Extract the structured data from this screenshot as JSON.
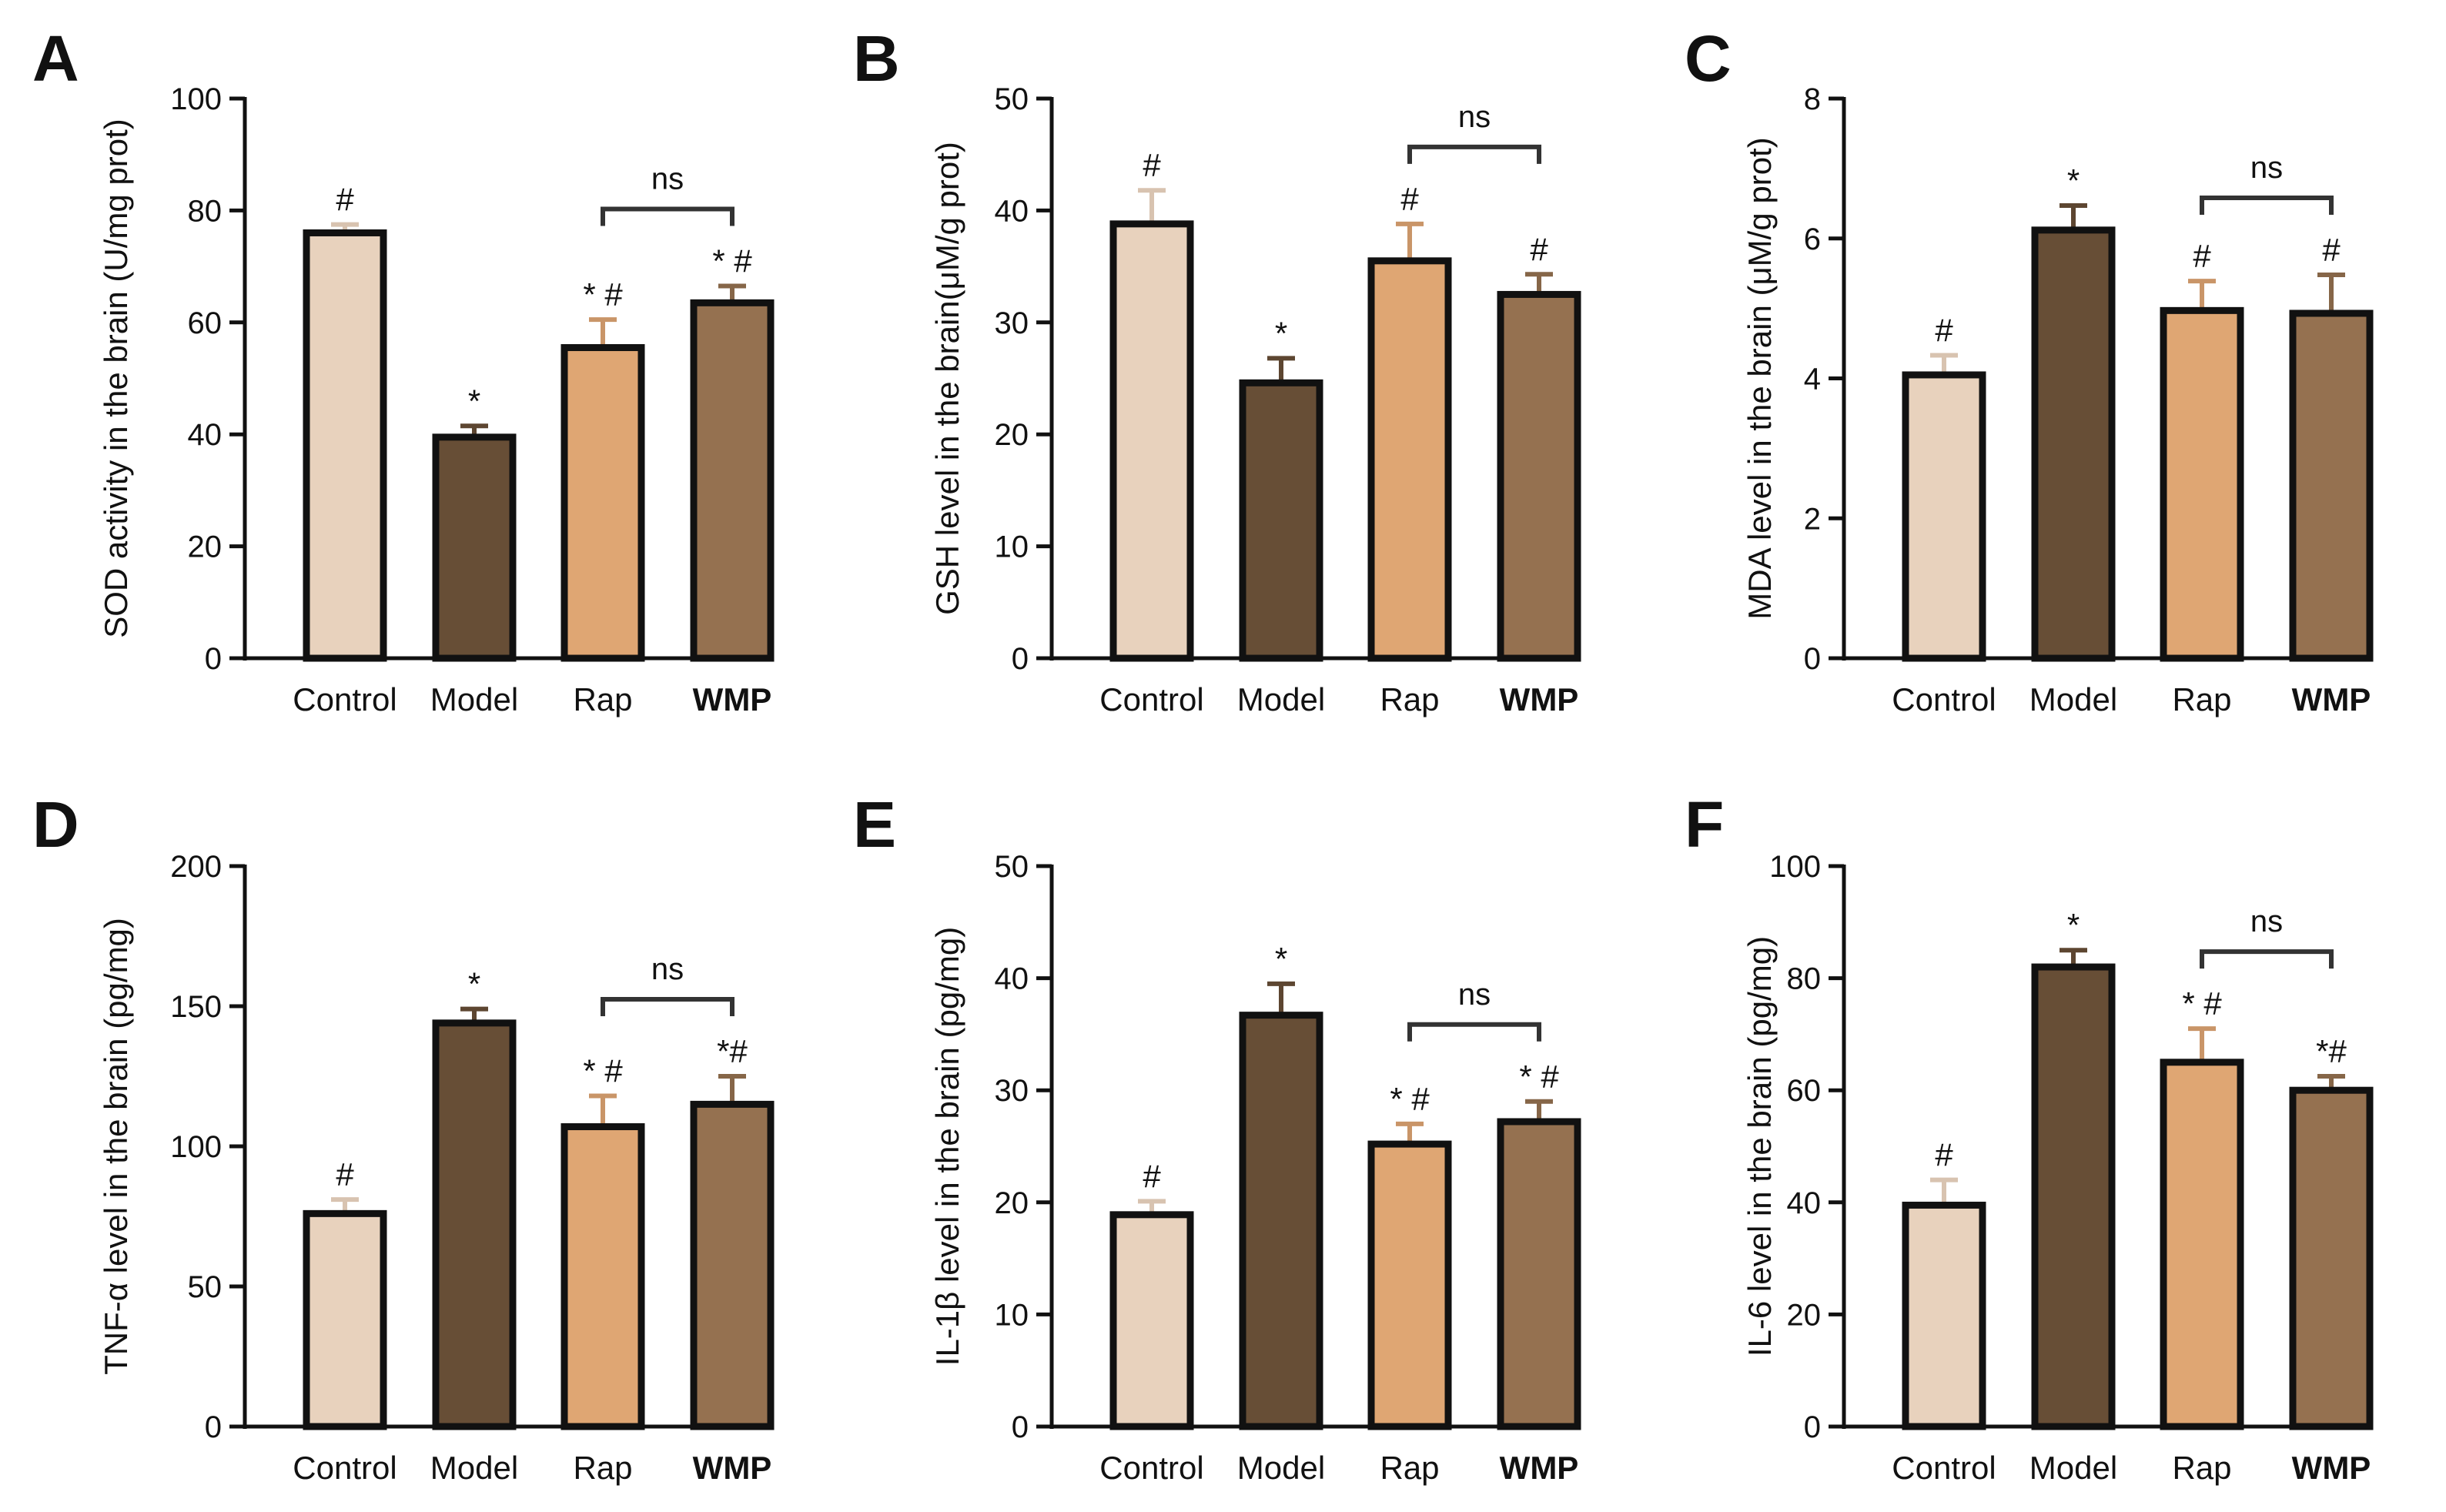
{
  "colors": {
    "Control": "#e8d2bd",
    "Model": "#674e36",
    "Rap": "#dfa673",
    "WMP": "#957150"
  },
  "chart_data": [
    {
      "panel": "A",
      "type": "bar",
      "categories": [
        "Control",
        "Model",
        "Rap",
        "WMP"
      ],
      "values": [
        76,
        39.5,
        55.5,
        63.5
      ],
      "errors": [
        1.5,
        2,
        5,
        3
      ],
      "annotations": [
        "#",
        "*",
        "* #",
        "* #"
      ],
      "ylabel": "SOD activity in the brain (U/mg prot)",
      "ylim": [
        0,
        100
      ],
      "yticks": [
        0,
        20,
        40,
        60,
        80,
        100
      ],
      "comparison": {
        "from": "Rap",
        "to": "WMP",
        "label": "ns"
      }
    },
    {
      "panel": "B",
      "type": "bar",
      "categories": [
        "Control",
        "Model",
        "Rap",
        "WMP"
      ],
      "values": [
        38.8,
        24.6,
        35.5,
        32.5
      ],
      "errors": [
        3,
        2.2,
        3.3,
        1.8
      ],
      "annotations": [
        "#",
        "*",
        "#",
        "#"
      ],
      "ylabel": "GSH level in the brain(μM/g prot)",
      "ylim": [
        0,
        50
      ],
      "yticks": [
        0,
        10,
        20,
        30,
        40,
        50
      ],
      "comparison": {
        "from": "Rap",
        "to": "WMP",
        "label": "ns"
      }
    },
    {
      "panel": "C",
      "type": "bar",
      "categories": [
        "Control",
        "Model",
        "Rap",
        "WMP"
      ],
      "values": [
        4.05,
        6.12,
        4.97,
        4.93
      ],
      "errors": [
        0.28,
        0.35,
        0.42,
        0.55
      ],
      "annotations": [
        "#",
        "*",
        "#",
        "#"
      ],
      "ylabel": "MDA level in the brain (μM/g prot)",
      "ylim": [
        0,
        8
      ],
      "yticks": [
        0,
        2,
        4,
        6,
        8
      ],
      "comparison": {
        "from": "Rap",
        "to": "WMP",
        "label": "ns"
      }
    },
    {
      "panel": "D",
      "type": "bar",
      "categories": [
        "Control",
        "Model",
        "Rap",
        "WMP"
      ],
      "values": [
        76,
        144,
        107,
        115
      ],
      "errors": [
        5,
        5,
        11,
        10
      ],
      "annotations": [
        "#",
        "*",
        "* #",
        "*#"
      ],
      "ylabel": "TNF-α level in the brain (pg/mg)",
      "ylim": [
        0,
        200
      ],
      "yticks": [
        0,
        50,
        100,
        150,
        200
      ],
      "comparison": {
        "from": "Rap",
        "to": "WMP",
        "label": "ns"
      }
    },
    {
      "panel": "E",
      "type": "bar",
      "categories": [
        "Control",
        "Model",
        "Rap",
        "WMP"
      ],
      "values": [
        18.9,
        36.7,
        25.2,
        27.2
      ],
      "errors": [
        1.2,
        2.8,
        1.8,
        1.8
      ],
      "annotations": [
        "#",
        "*",
        "* #",
        "* #"
      ],
      "ylabel": "IL-1β level in the brain (pg/mg)",
      "ylim": [
        0,
        50
      ],
      "yticks": [
        0,
        10,
        20,
        30,
        40,
        50
      ],
      "comparison": {
        "from": "Rap",
        "to": "WMP",
        "label": "ns"
      }
    },
    {
      "panel": "F",
      "type": "bar",
      "categories": [
        "Control",
        "Model",
        "Rap",
        "WMP"
      ],
      "values": [
        39.5,
        82,
        65,
        60
      ],
      "errors": [
        4.5,
        3,
        6,
        2.5
      ],
      "annotations": [
        "#",
        "*",
        "* #",
        "*#"
      ],
      "ylabel": "IL-6 level in the brain (pg/mg)",
      "ylim": [
        0,
        100
      ],
      "yticks": [
        0,
        20,
        40,
        60,
        80,
        100
      ],
      "comparison": {
        "from": "Rap",
        "to": "WMP",
        "label": "ns"
      }
    }
  ]
}
